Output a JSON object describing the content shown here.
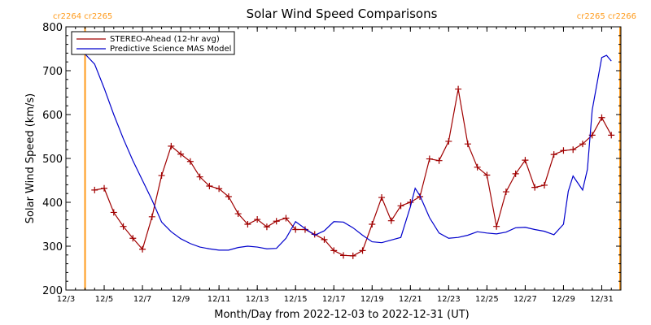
{
  "chart_data": {
    "type": "line",
    "title": "Solar Wind Speed Comparisons",
    "xlabel": "Month/Day from 2022-12-03 to 2022-12-31 (UT)",
    "ylabel": "Solar Wind Speed (km/s)",
    "xlim": [
      "2022-12-03",
      "2023-01-01"
    ],
    "ylim": [
      200,
      800
    ],
    "x_ticks": [
      {
        "date": "2022-12-03",
        "label": "12/3"
      },
      {
        "date": "2022-12-05",
        "label": "12/5"
      },
      {
        "date": "2022-12-07",
        "label": "12/7"
      },
      {
        "date": "2022-12-09",
        "label": "12/9"
      },
      {
        "date": "2022-12-11",
        "label": "12/11"
      },
      {
        "date": "2022-12-13",
        "label": "12/13"
      },
      {
        "date": "2022-12-15",
        "label": "12/15"
      },
      {
        "date": "2022-12-17",
        "label": "12/17"
      },
      {
        "date": "2022-12-19",
        "label": "12/19"
      },
      {
        "date": "2022-12-21",
        "label": "12/21"
      },
      {
        "date": "2022-12-23",
        "label": "12/23"
      },
      {
        "date": "2022-12-25",
        "label": "12/25"
      },
      {
        "date": "2022-12-27",
        "label": "12/27"
      },
      {
        "date": "2022-12-29",
        "label": "12/29"
      },
      {
        "date": "2022-12-31",
        "label": "12/31"
      }
    ],
    "y_ticks": [
      200,
      300,
      400,
      500,
      600,
      700,
      800
    ],
    "y_tick_labels": [
      "200",
      "300",
      "400",
      "500",
      "600",
      "700",
      "800"
    ],
    "grid": false,
    "legend_position": "top-left",
    "colors": {
      "stereo": "#a00000",
      "mas": "#0000cc",
      "carrington": "#ff9a1a"
    },
    "carrington_markers": [
      {
        "date": "2022-12-04T00:00",
        "label": "cr2264 cr2265",
        "label_position": "left"
      },
      {
        "date": "2022-12-31T23:00",
        "label": "cr2265 cr2266",
        "label_position": "right"
      }
    ],
    "series": [
      {
        "name": "STEREO-Ahead (12-hr avg)",
        "marker": "plus",
        "points": [
          [
            "2022-12-04T12:00",
            428
          ],
          [
            "2022-12-05T00:00",
            432
          ],
          [
            "2022-12-05T12:00",
            377
          ],
          [
            "2022-12-06T00:00",
            345
          ],
          [
            "2022-12-06T12:00",
            318
          ],
          [
            "2022-12-07T00:00",
            293
          ],
          [
            "2022-12-07T12:00",
            367
          ],
          [
            "2022-12-08T00:00",
            461
          ],
          [
            "2022-12-08T12:00",
            528
          ],
          [
            "2022-12-09T00:00",
            510
          ],
          [
            "2022-12-09T12:00",
            493
          ],
          [
            "2022-12-10T00:00",
            458
          ],
          [
            "2022-12-10T12:00",
            437
          ],
          [
            "2022-12-11T00:00",
            431
          ],
          [
            "2022-12-11T12:00",
            413
          ],
          [
            "2022-12-12T00:00",
            374
          ],
          [
            "2022-12-12T12:00",
            350
          ],
          [
            "2022-12-13T00:00",
            361
          ],
          [
            "2022-12-13T12:00",
            344
          ],
          [
            "2022-12-14T00:00",
            357
          ],
          [
            "2022-12-14T12:00",
            364
          ],
          [
            "2022-12-15T00:00",
            338
          ],
          [
            "2022-12-15T12:00",
            338
          ],
          [
            "2022-12-16T00:00",
            327
          ],
          [
            "2022-12-16T12:00",
            315
          ],
          [
            "2022-12-17T00:00",
            290
          ],
          [
            "2022-12-17T12:00",
            279
          ],
          [
            "2022-12-18T00:00",
            278
          ],
          [
            "2022-12-18T12:00",
            290
          ],
          [
            "2022-12-19T00:00",
            350
          ],
          [
            "2022-12-19T12:00",
            411
          ],
          [
            "2022-12-20T00:00",
            358
          ],
          [
            "2022-12-20T12:00",
            392
          ],
          [
            "2022-12-21T00:00",
            400
          ],
          [
            "2022-12-21T12:00",
            413
          ],
          [
            "2022-12-22T00:00",
            499
          ],
          [
            "2022-12-22T12:00",
            495
          ],
          [
            "2022-12-23T00:00",
            539
          ],
          [
            "2022-12-23T12:00",
            658
          ],
          [
            "2022-12-24T00:00",
            533
          ],
          [
            "2022-12-24T12:00",
            480
          ],
          [
            "2022-12-25T00:00",
            462
          ],
          [
            "2022-12-25T12:00",
            345
          ],
          [
            "2022-12-26T00:00",
            424
          ],
          [
            "2022-12-26T12:00",
            465
          ],
          [
            "2022-12-27T00:00",
            496
          ],
          [
            "2022-12-27T12:00",
            434
          ],
          [
            "2022-12-28T00:00",
            439
          ],
          [
            "2022-12-28T12:00",
            509
          ],
          [
            "2022-12-29T00:00",
            518
          ],
          [
            "2022-12-29T12:00",
            520
          ],
          [
            "2022-12-30T00:00",
            533
          ],
          [
            "2022-12-30T12:00",
            553
          ],
          [
            "2022-12-31T00:00",
            593
          ],
          [
            "2022-12-31T12:00",
            553
          ]
        ]
      },
      {
        "name": "Predictive Science MAS Model",
        "marker": "none",
        "points": [
          [
            "2022-12-04T00:00",
            738
          ],
          [
            "2022-12-04T12:00",
            715
          ],
          [
            "2022-12-05T00:00",
            660
          ],
          [
            "2022-12-05T12:00",
            600
          ],
          [
            "2022-12-06T00:00",
            545
          ],
          [
            "2022-12-06T12:00",
            495
          ],
          [
            "2022-12-07T00:00",
            450
          ],
          [
            "2022-12-07T12:00",
            405
          ],
          [
            "2022-12-08T00:00",
            355
          ],
          [
            "2022-12-08T12:00",
            333
          ],
          [
            "2022-12-09T00:00",
            317
          ],
          [
            "2022-12-09T12:00",
            306
          ],
          [
            "2022-12-10T00:00",
            298
          ],
          [
            "2022-12-10T12:00",
            294
          ],
          [
            "2022-12-11T00:00",
            291
          ],
          [
            "2022-12-11T12:00",
            291
          ],
          [
            "2022-12-12T00:00",
            297
          ],
          [
            "2022-12-12T12:00",
            300
          ],
          [
            "2022-12-13T00:00",
            298
          ],
          [
            "2022-12-13T12:00",
            294
          ],
          [
            "2022-12-14T00:00",
            295
          ],
          [
            "2022-12-14T12:00",
            318
          ],
          [
            "2022-12-15T00:00",
            356
          ],
          [
            "2022-12-15T12:00",
            340
          ],
          [
            "2022-12-16T00:00",
            325
          ],
          [
            "2022-12-16T12:00",
            335
          ],
          [
            "2022-12-17T00:00",
            356
          ],
          [
            "2022-12-17T12:00",
            355
          ],
          [
            "2022-12-18T00:00",
            342
          ],
          [
            "2022-12-18T12:00",
            325
          ],
          [
            "2022-12-19T00:00",
            310
          ],
          [
            "2022-12-19T12:00",
            308
          ],
          [
            "2022-12-20T00:00",
            314
          ],
          [
            "2022-12-20T12:00",
            320
          ],
          [
            "2022-12-21T00:00",
            390
          ],
          [
            "2022-12-21T06:00",
            432
          ],
          [
            "2022-12-21T12:00",
            415
          ],
          [
            "2022-12-22T00:00",
            365
          ],
          [
            "2022-12-22T12:00",
            330
          ],
          [
            "2022-12-23T00:00",
            318
          ],
          [
            "2022-12-23T12:00",
            320
          ],
          [
            "2022-12-24T00:00",
            325
          ],
          [
            "2022-12-24T12:00",
            333
          ],
          [
            "2022-12-25T00:00",
            330
          ],
          [
            "2022-12-25T12:00",
            328
          ],
          [
            "2022-12-26T00:00",
            332
          ],
          [
            "2022-12-26T12:00",
            342
          ],
          [
            "2022-12-27T00:00",
            343
          ],
          [
            "2022-12-27T12:00",
            338
          ],
          [
            "2022-12-28T00:00",
            334
          ],
          [
            "2022-12-28T12:00",
            326
          ],
          [
            "2022-12-29T00:00",
            350
          ],
          [
            "2022-12-29T06:00",
            425
          ],
          [
            "2022-12-29T12:00",
            460
          ],
          [
            "2022-12-30T00:00",
            428
          ],
          [
            "2022-12-30T06:00",
            475
          ],
          [
            "2022-12-30T12:00",
            610
          ],
          [
            "2022-12-31T00:00",
            730
          ],
          [
            "2022-12-31T06:00",
            735
          ],
          [
            "2022-12-31T12:00",
            722
          ]
        ]
      }
    ]
  }
}
